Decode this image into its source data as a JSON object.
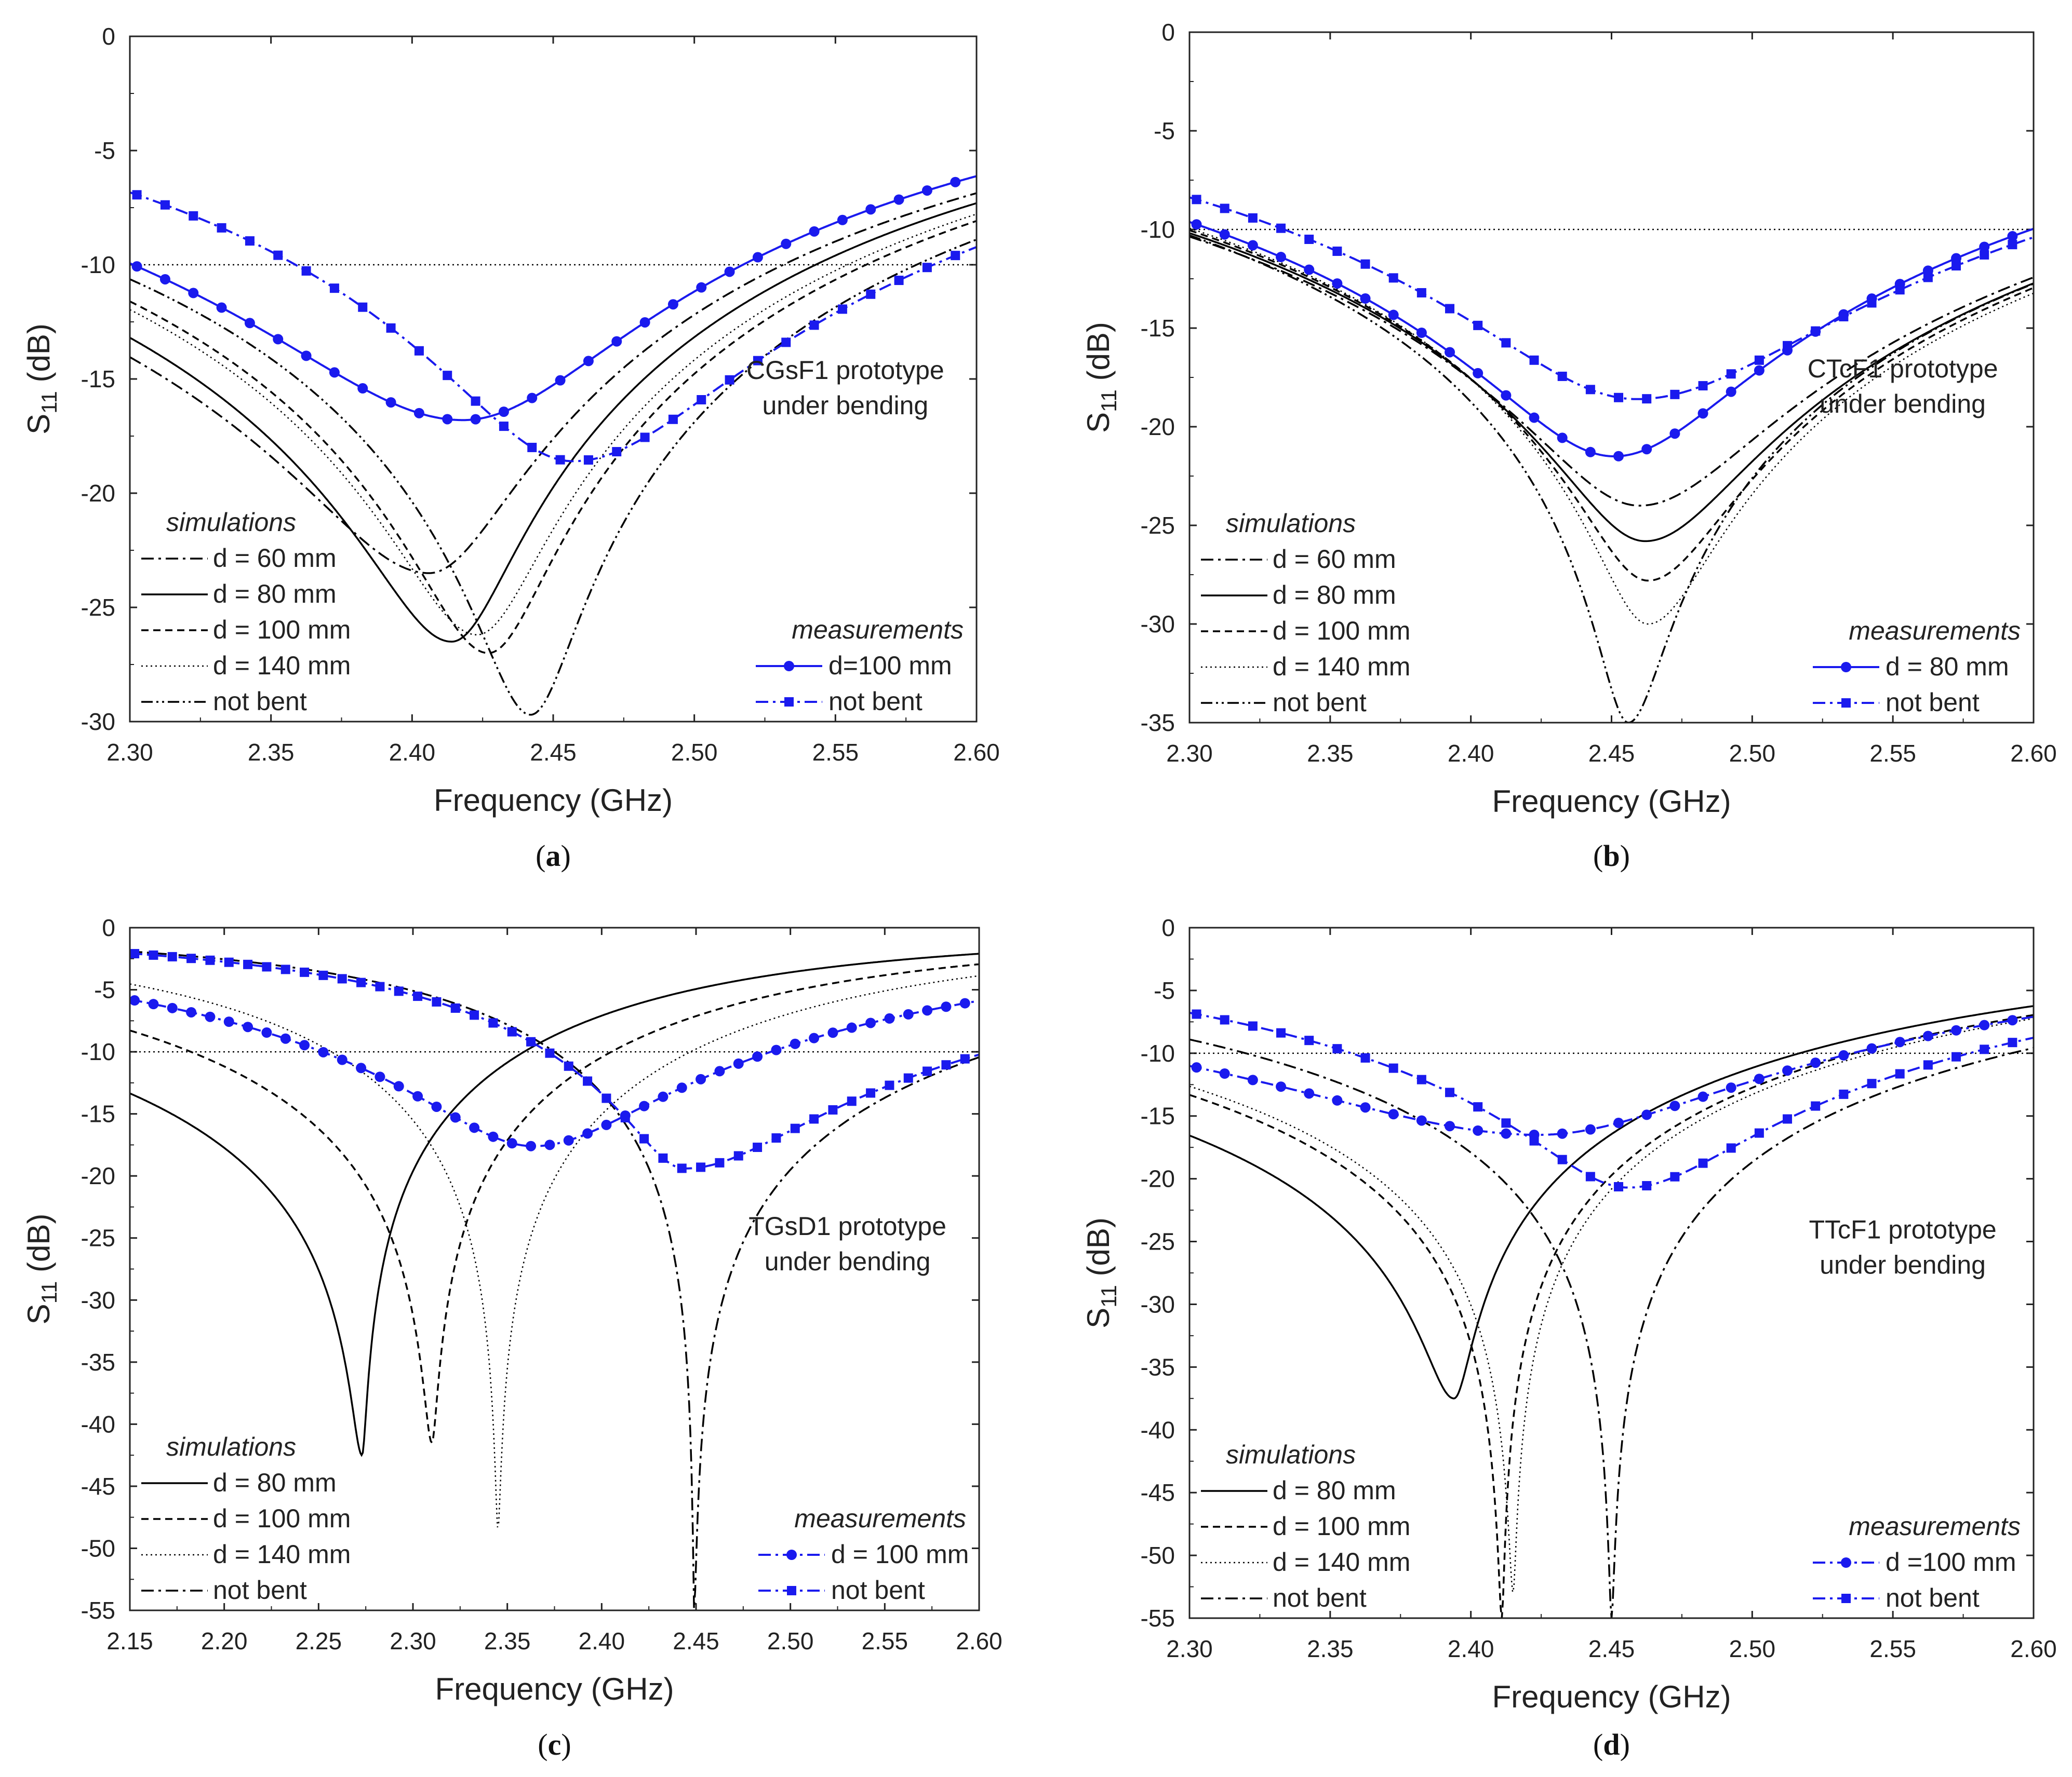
{
  "figure": {
    "colors": {
      "sim": "#000000",
      "meas": "#1a1aee",
      "threshold": "#000000"
    }
  },
  "chart_data": [
    {
      "id": "a",
      "type": "line",
      "caption_letter": "a",
      "caption_open": "(",
      "caption_close": ")",
      "xlabel": "Frequency (GHz)",
      "ylabel_main": "S",
      "ylabel_sub": "11",
      "ylabel_unit": " (dB)",
      "xlim": [
        2.3,
        2.6
      ],
      "ylim": [
        -30,
        0
      ],
      "xticks": [
        "2.30",
        "2.35",
        "2.40",
        "2.45",
        "2.50",
        "2.55",
        "2.60"
      ],
      "yticks": [
        "0",
        "-5",
        "-10",
        "-15",
        "-20",
        "-25",
        "-30"
      ],
      "threshold_db": -10,
      "annotation": [
        "CGsF1 prototype",
        "under bending"
      ],
      "legend_sim_title": "simulations",
      "legend_meas_title": "measurements",
      "series": [
        {
          "name": "d = 60 mm",
          "group": "sim",
          "dash": "dashdot",
          "f0": 2.406,
          "min": -23.5,
          "a_left": -6.4,
          "a_right": -4.2
        },
        {
          "name": "d = 80 mm",
          "group": "sim",
          "dash": "solid",
          "f0": 2.414,
          "min": -26.5,
          "a_left": -6.0,
          "a_right": -4.3
        },
        {
          "name": "d = 100 mm",
          "group": "sim",
          "dash": "dash",
          "f0": 2.427,
          "min": -27.0,
          "a_left": -5.4,
          "a_right": -4.5
        },
        {
          "name": "d = 140 mm",
          "group": "sim",
          "dash": "dot",
          "f0": 2.423,
          "min": -26.2,
          "a_left": -5.5,
          "a_right": -4.4
        },
        {
          "name": "not bent",
          "group": "sim",
          "dash": "dashdotdot",
          "f0": 2.442,
          "min": -29.7,
          "a_left": -5.3,
          "a_right": -4.6
        },
        {
          "name": "d=100 mm",
          "group": "meas",
          "dash": "solid",
          "marker": "circle",
          "f0": 2.418,
          "min": -16.8,
          "a_left": -4.2,
          "a_right": -3.4
        },
        {
          "name": "not bent",
          "group": "meas",
          "dash": "dashdot",
          "marker": "square",
          "f0": 2.457,
          "min": -18.6,
          "a_left": -3.2,
          "a_right": -4.5
        }
      ]
    },
    {
      "id": "b",
      "type": "line",
      "caption_letter": "b",
      "caption_open": "(",
      "caption_close": ")",
      "xlabel": "Frequency (GHz)",
      "ylabel_main": "S",
      "ylabel_sub": "11",
      "ylabel_unit": " (dB)",
      "xlim": [
        2.3,
        2.6
      ],
      "ylim": [
        -35,
        0
      ],
      "xticks": [
        "2.30",
        "2.35",
        "2.40",
        "2.45",
        "2.50",
        "2.55",
        "2.60"
      ],
      "yticks": [
        "0",
        "-5",
        "-10",
        "-15",
        "-20",
        "-25",
        "-30",
        "-35"
      ],
      "threshold_db": -10,
      "annotation": [
        "CTcF1 prototype",
        "under bending"
      ],
      "legend_sim_title": "simulations",
      "legend_meas_title": "measurements",
      "series": [
        {
          "name": "d = 60 mm",
          "group": "sim",
          "dash": "dashdot",
          "f0": 2.46,
          "min": -24.0,
          "a_left": -5.9,
          "a_right": -6.8
        },
        {
          "name": "d = 80 mm",
          "group": "sim",
          "dash": "solid",
          "f0": 2.462,
          "min": -25.8,
          "a_left": -5.8,
          "a_right": -6.9
        },
        {
          "name": "d = 100 mm",
          "group": "sim",
          "dash": "dash",
          "f0": 2.463,
          "min": -27.8,
          "a_left": -5.7,
          "a_right": -7.0
        },
        {
          "name": "d = 140 mm",
          "group": "sim",
          "dash": "dot",
          "f0": 2.463,
          "min": -30.0,
          "a_left": -5.6,
          "a_right": -7.2
        },
        {
          "name": "not bent",
          "group": "sim",
          "dash": "dashdotdot",
          "f0": 2.456,
          "min": -35.0,
          "a_left": -5.6,
          "a_right": -7.1
        },
        {
          "name": "d = 80 mm",
          "group": "meas",
          "dash": "solid",
          "marker": "circle",
          "f0": 2.451,
          "min": -21.5,
          "a_left": -5.0,
          "a_right": -5.2
        },
        {
          "name": "not bent",
          "group": "meas",
          "dash": "dashdot",
          "marker": "square",
          "f0": 2.459,
          "min": -18.6,
          "a_left": -4.4,
          "a_right": -5.4
        }
      ]
    },
    {
      "id": "c",
      "type": "line",
      "caption_letter": "c",
      "caption_open": "(",
      "caption_close": ")",
      "xlabel": "Frequency (GHz)",
      "ylabel_main": "S",
      "ylabel_sub": "11",
      "ylabel_unit": " (dB)",
      "xlim": [
        2.15,
        2.6
      ],
      "ylim": [
        -55,
        0
      ],
      "xticks": [
        "2.15",
        "2.20",
        "2.25",
        "2.30",
        "2.35",
        "2.40",
        "2.45",
        "2.50",
        "2.55",
        "2.60"
      ],
      "yticks": [
        "0",
        "-5",
        "-10",
        "-15",
        "-20",
        "-25",
        "-30",
        "-35",
        "-40",
        "-45",
        "-50",
        "-55"
      ],
      "threshold_db": -10,
      "annotation": [
        "TGsD1 prototype",
        "under bending"
      ],
      "legend_sim_title": "simulations",
      "legend_meas_title": "measurements",
      "series": [
        {
          "name": "d = 80 mm",
          "group": "sim",
          "dash": "solid",
          "f0": 2.273,
          "min": -42.5,
          "a_left": -6.5,
          "a_right": -2.4
        },
        {
          "name": "d = 100 mm",
          "group": "sim",
          "dash": "dash",
          "f0": 2.31,
          "min": -41.5,
          "a_left": -4.2,
          "a_right": -2.8
        },
        {
          "name": "d = 140 mm",
          "group": "sim",
          "dash": "dot",
          "f0": 2.345,
          "min": -48.5,
          "a_left": -2.5,
          "a_right": -3.1
        },
        {
          "name": "not bent",
          "group": "sim",
          "dash": "dashdot",
          "f0": 2.449,
          "min": -55.0,
          "a_left": -1.9,
          "a_right": -5.5
        },
        {
          "name": "d = 100 mm",
          "group": "meas",
          "dash": "dashdot",
          "marker": "circle",
          "f0": 2.364,
          "min": -17.6,
          "a_left": -3.9,
          "a_right": -4.5
        },
        {
          "name": "not bent",
          "group": "meas",
          "dash": "dashdot",
          "marker": "square",
          "f0": 2.444,
          "min": -19.4,
          "a_left": -2.0,
          "a_right": -5.8
        }
      ]
    },
    {
      "id": "d",
      "type": "line",
      "caption_letter": "d",
      "caption_open": "(",
      "caption_close": ")",
      "xlabel": "Frequency (GHz)",
      "ylabel_main": "S",
      "ylabel_sub": "11",
      "ylabel_unit": " (dB)",
      "xlim": [
        2.3,
        2.6
      ],
      "ylim": [
        -55,
        0
      ],
      "xticks": [
        "2.30",
        "2.35",
        "2.40",
        "2.45",
        "2.50",
        "2.55",
        "2.60"
      ],
      "yticks": [
        "0",
        "-5",
        "-10",
        "-15",
        "-20",
        "-25",
        "-30",
        "-35",
        "-40",
        "-45",
        "-50",
        "-55"
      ],
      "threshold_db": -10,
      "annotation": [
        "TTcF1 prototype",
        "under bending"
      ],
      "legend_sim_title": "simulations",
      "legend_meas_title": "measurements",
      "series": [
        {
          "name": "d = 80 mm",
          "group": "sim",
          "dash": "solid",
          "f0": 2.394,
          "min": -37.5,
          "a_left": -7.3,
          "a_right": -4.0
        },
        {
          "name": "d = 100 mm",
          "group": "sim",
          "dash": "dash",
          "f0": 2.411,
          "min": -55.0,
          "a_left": -5.8,
          "a_right": -4.1
        },
        {
          "name": "d = 140 mm",
          "group": "sim",
          "dash": "dot",
          "f0": 2.415,
          "min": -53.0,
          "a_left": -5.5,
          "a_right": -4.2
        },
        {
          "name": "not bent",
          "group": "sim",
          "dash": "dashdot",
          "f0": 2.45,
          "min": -55.0,
          "a_left": -4.3,
          "a_right": -4.8
        },
        {
          "name": "d =100 mm",
          "group": "meas",
          "dash": "dashdot",
          "marker": "circle",
          "f0": 2.424,
          "min": -16.5,
          "a_left": -5.5,
          "a_right": -4.0
        },
        {
          "name": "not bent",
          "group": "meas",
          "dash": "dashdot",
          "marker": "square",
          "f0": 2.456,
          "min": -20.7,
          "a_left": -3.1,
          "a_right": -4.1
        }
      ]
    }
  ]
}
